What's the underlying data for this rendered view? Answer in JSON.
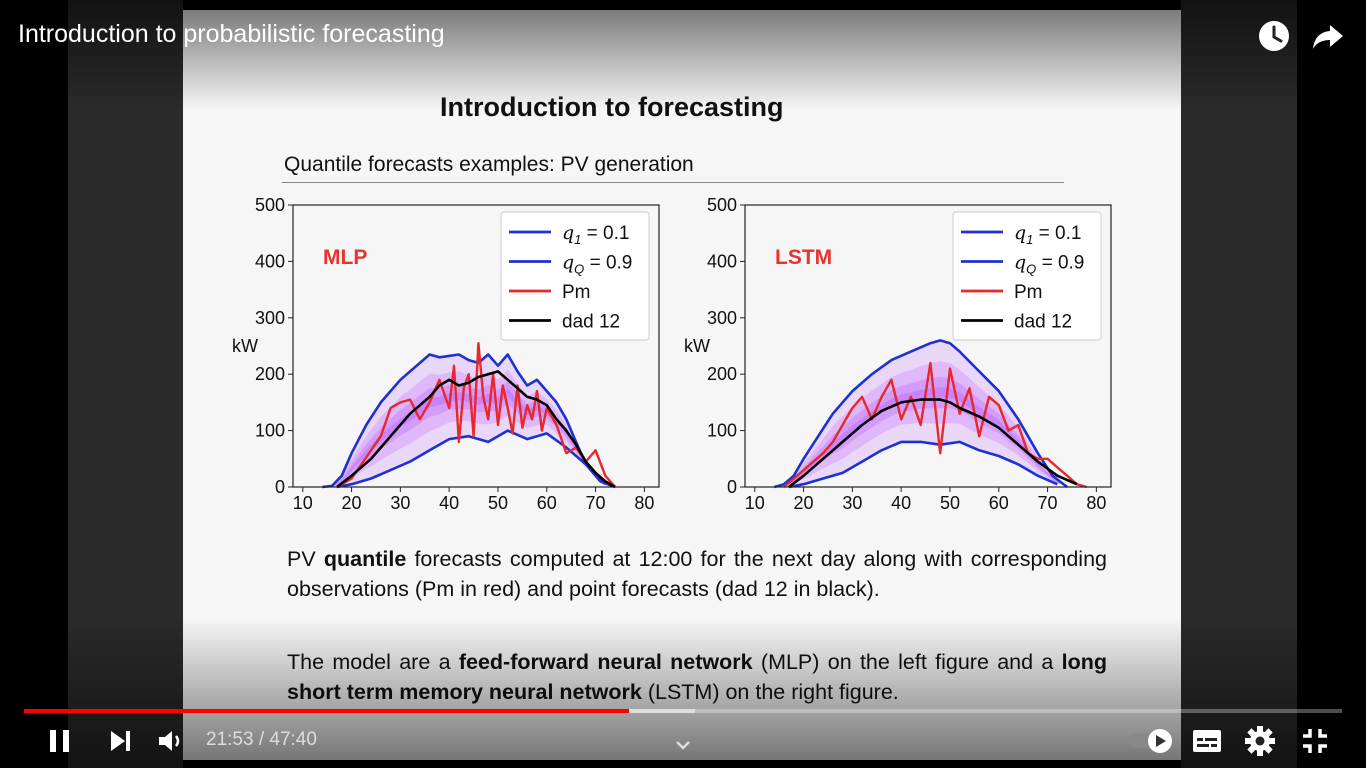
{
  "video": {
    "title": "Introduction to probabilistic forecasting",
    "current_time": "21:53",
    "separator": " / ",
    "duration": "47:40",
    "progress_fraction": 0.459,
    "buffered_fraction": 0.509
  },
  "slide": {
    "heading": "Introduction to forecasting",
    "subheading": "Quantile forecasts examples: PV generation",
    "paragraph1": [
      {
        "t": "PV ",
        "b": false
      },
      {
        "t": "quantile",
        "b": true
      },
      {
        "t": " forecasts computed at 12:00 for the next day along with corresponding observations (Pm in red) and point forecasts (dad 12 in black).",
        "b": false
      }
    ],
    "paragraph2": [
      {
        "t": "The model are a ",
        "b": false
      },
      {
        "t": "feed-forward neural network",
        "b": true
      },
      {
        "t": " (MLP) on the left figure and a ",
        "b": false
      },
      {
        "t": "long short term memory neural network",
        "b": true
      },
      {
        "t": " (LSTM) on the right figure.",
        "b": false
      }
    ]
  },
  "colors": {
    "quantile": "#1f2fd6",
    "observed": "#e8282a",
    "point": "#000000",
    "label": "#e8332e",
    "fill": "#b44dff",
    "progress": "#ff0000"
  },
  "icons": {
    "watch_later": "clock-icon",
    "share": "share-arrow-icon",
    "pause": "pause-icon",
    "next": "skip-next-icon",
    "volume": "volume-icon",
    "autoplay": "autoplay-toggle-icon",
    "subtitles": "subtitles-icon",
    "settings": "gear-icon",
    "exit_fullscreen": "exit-fullscreen-icon",
    "chapters": "chevron-down-icon"
  },
  "chart_data": [
    {
      "type": "line",
      "label": "MLP",
      "ylabel": "kW",
      "xlim": [
        8,
        83
      ],
      "ylim": [
        0,
        500
      ],
      "xticks": [
        10,
        20,
        30,
        40,
        50,
        60,
        70,
        80
      ],
      "yticks": [
        0,
        100,
        200,
        300,
        400,
        500
      ],
      "legend": "top-right",
      "legend_entries": [
        {
          "math": "q",
          "sub": "1",
          "val": " = 0.1",
          "series": "q1"
        },
        {
          "math": "q",
          "sub": "Q",
          "val": " = 0.9",
          "series": "qQ"
        },
        {
          "text": "Pm",
          "series": "Pm"
        },
        {
          "text": "dad 12",
          "series": "dad12"
        }
      ],
      "series": {
        "q1": {
          "x": [
            17,
            20,
            24,
            28,
            32,
            36,
            40,
            44,
            48,
            52,
            56,
            60,
            64,
            68,
            72
          ],
          "y": [
            0,
            5,
            15,
            30,
            45,
            65,
            85,
            90,
            80,
            100,
            85,
            95,
            70,
            40,
            5
          ]
        },
        "qQ": {
          "x": [
            14,
            16,
            18,
            20,
            23,
            26,
            30,
            34,
            36,
            38,
            42,
            44,
            46,
            48,
            50,
            52,
            54,
            56,
            58,
            60,
            62,
            64,
            66,
            68,
            71,
            74
          ],
          "y": [
            0,
            2,
            20,
            60,
            110,
            150,
            190,
            220,
            235,
            230,
            235,
            225,
            220,
            235,
            215,
            235,
            205,
            180,
            190,
            170,
            150,
            120,
            80,
            40,
            10,
            0
          ]
        },
        "Pm": {
          "x": [
            17,
            20,
            24,
            26,
            28,
            30,
            32,
            34,
            36,
            38,
            40,
            41,
            42,
            43,
            44,
            45,
            46,
            47,
            48,
            49,
            50,
            51,
            52,
            53,
            54,
            55,
            56,
            57,
            58,
            59,
            60,
            62,
            64,
            66,
            68,
            70,
            72,
            74
          ],
          "y": [
            0,
            15,
            65,
            90,
            140,
            150,
            155,
            120,
            150,
            190,
            140,
            215,
            80,
            175,
            200,
            90,
            255,
            160,
            120,
            200,
            110,
            180,
            140,
            95,
            180,
            105,
            145,
            120,
            170,
            100,
            140,
            110,
            60,
            70,
            45,
            65,
            20,
            0
          ]
        },
        "dad12": {
          "x": [
            17,
            20,
            24,
            28,
            32,
            36,
            38,
            40,
            42,
            44,
            46,
            48,
            50,
            52,
            54,
            56,
            58,
            60,
            62,
            64,
            66,
            68,
            70,
            72,
            74
          ],
          "y": [
            0,
            20,
            50,
            90,
            130,
            160,
            180,
            190,
            180,
            185,
            195,
            200,
            205,
            190,
            175,
            160,
            155,
            145,
            120,
            100,
            75,
            45,
            25,
            10,
            0
          ]
        }
      }
    },
    {
      "type": "line",
      "label": "LSTM",
      "ylabel": "kW",
      "xlim": [
        8,
        83
      ],
      "ylim": [
        0,
        500
      ],
      "xticks": [
        10,
        20,
        30,
        40,
        50,
        60,
        70,
        80
      ],
      "yticks": [
        0,
        100,
        200,
        300,
        400,
        500
      ],
      "legend": "top-right",
      "legend_entries": [
        {
          "math": "q",
          "sub": "1",
          "val": " = 0.1",
          "series": "q1"
        },
        {
          "math": "q",
          "sub": "Q",
          "val": " = 0.9",
          "series": "qQ"
        },
        {
          "text": "Pm",
          "series": "Pm"
        },
        {
          "text": "dad 12",
          "series": "dad12"
        }
      ],
      "series": {
        "q1": {
          "x": [
            17,
            20,
            24,
            28,
            32,
            36,
            40,
            44,
            48,
            52,
            56,
            60,
            64,
            68,
            72
          ],
          "y": [
            0,
            5,
            15,
            25,
            45,
            65,
            80,
            80,
            75,
            80,
            65,
            55,
            40,
            20,
            5
          ]
        },
        "qQ": {
          "x": [
            14,
            16,
            18,
            20,
            23,
            26,
            30,
            34,
            38,
            42,
            46,
            48,
            50,
            52,
            56,
            60,
            64,
            68,
            71,
            74
          ],
          "y": [
            0,
            5,
            20,
            50,
            90,
            130,
            170,
            200,
            225,
            240,
            255,
            260,
            255,
            240,
            205,
            170,
            120,
            60,
            20,
            0
          ]
        },
        "Pm": {
          "x": [
            16,
            20,
            24,
            26,
            28,
            30,
            32,
            34,
            36,
            38,
            40,
            42,
            44,
            46,
            48,
            50,
            52,
            54,
            56,
            58,
            60,
            62,
            64,
            66,
            68,
            70,
            72,
            74,
            76,
            78
          ],
          "y": [
            0,
            30,
            60,
            80,
            110,
            140,
            160,
            120,
            160,
            190,
            120,
            160,
            110,
            220,
            60,
            210,
            130,
            175,
            90,
            160,
            145,
            100,
            110,
            60,
            50,
            50,
            35,
            20,
            5,
            0
          ]
        },
        "dad12": {
          "x": [
            17,
            20,
            24,
            28,
            32,
            36,
            40,
            44,
            48,
            50,
            52,
            56,
            60,
            64,
            68,
            72,
            76
          ],
          "y": [
            0,
            20,
            50,
            80,
            110,
            135,
            150,
            155,
            155,
            150,
            140,
            125,
            105,
            75,
            45,
            20,
            5
          ]
        }
      }
    }
  ]
}
